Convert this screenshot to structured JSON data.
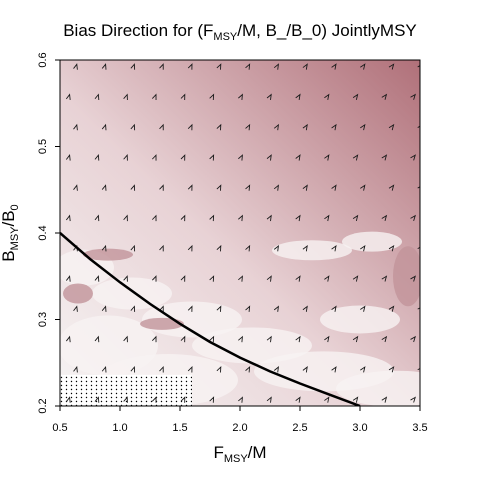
{
  "chart_data": {
    "type": "heatmap",
    "title": {
      "prefix": "Bias Direction for (F",
      "prefix_sub": "MSY",
      "suffix": "/M, B_/B_0) JointlyMSY"
    },
    "xlabel": {
      "main": "F",
      "sub": "MSY",
      "suffix": "/M"
    },
    "ylabel": {
      "main": "B",
      "sub1": "MSY",
      "mid": "/B",
      "sub2": "0"
    },
    "xlim": [
      0.5,
      3.5
    ],
    "ylim": [
      0.2,
      0.6
    ],
    "x_ticks": [
      "0.5",
      "1.0",
      "1.5",
      "2.0",
      "2.5",
      "3.0",
      "3.5"
    ],
    "y_ticks": [
      "0.2",
      "0.3",
      "0.4",
      "0.5",
      "0.6"
    ],
    "grid": false,
    "legend": "none",
    "colors": {
      "low_bias": "#f4f4f4",
      "high_bias": "#b07079",
      "curve": "#000000",
      "arrow": "#1a1a1a",
      "stipple": "#000000"
    },
    "curve": {
      "description_from_image": "reference curve",
      "points": [
        [
          0.5,
          0.4
        ],
        [
          0.75,
          0.37
        ],
        [
          1.0,
          0.343
        ],
        [
          1.25,
          0.318
        ],
        [
          1.5,
          0.295
        ],
        [
          1.75,
          0.274
        ],
        [
          2.0,
          0.256
        ],
        [
          2.25,
          0.24
        ],
        [
          2.5,
          0.226
        ],
        [
          2.75,
          0.213
        ],
        [
          3.0,
          0.2
        ]
      ]
    },
    "stipple_region": {
      "x_range": [
        0.5,
        1.6
      ],
      "y_range": [
        0.2,
        0.236
      ]
    },
    "arrow_grid": {
      "x": [
        0.58,
        0.82,
        1.06,
        1.3,
        1.54,
        1.78,
        2.02,
        2.26,
        2.5,
        2.74,
        2.98,
        3.22,
        3.46
      ],
      "y": [
        0.21,
        0.245,
        0.28,
        0.315,
        0.35,
        0.385,
        0.42,
        0.455,
        0.49,
        0.525,
        0.56,
        0.595
      ]
    }
  }
}
